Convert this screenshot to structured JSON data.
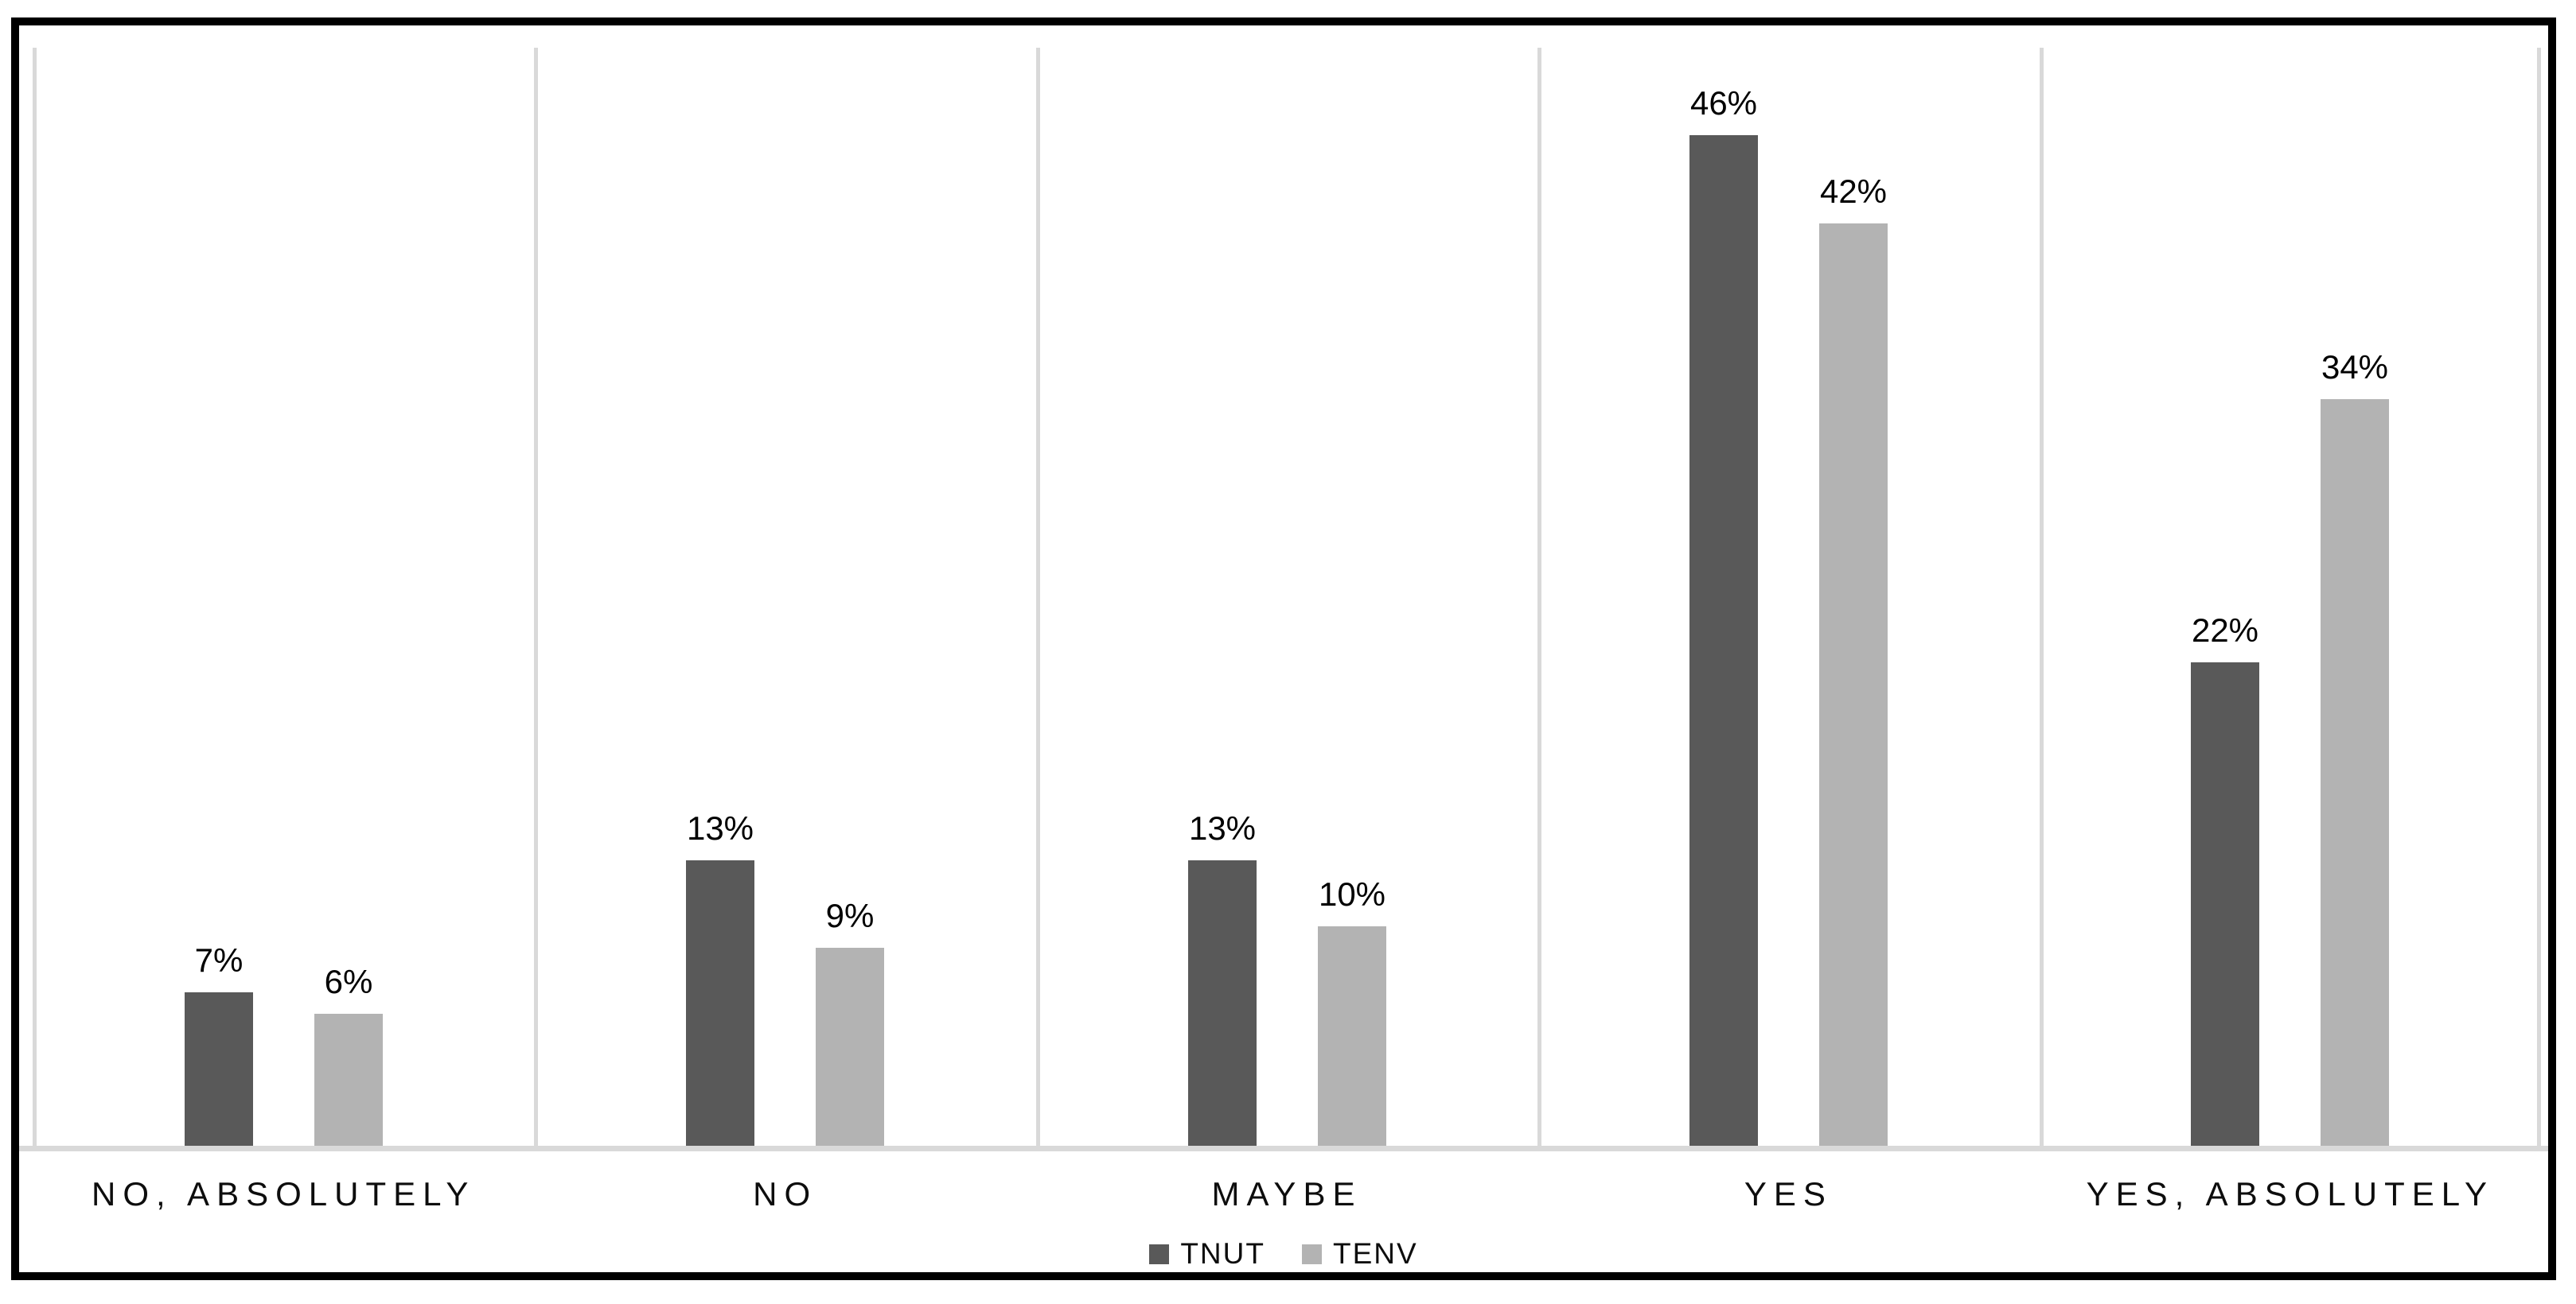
{
  "chart_data": {
    "type": "bar",
    "title": "",
    "xlabel": "",
    "ylabel": "",
    "categories": [
      "NO, ABSOLUTELY",
      "NO",
      "MAYBE",
      "YES",
      "YES, ABSOLUTELY"
    ],
    "series": [
      {
        "name": "TNUT",
        "color": "#595959",
        "values": [
          7,
          13,
          13,
          46,
          22
        ],
        "labels": [
          "7%",
          "13%",
          "13%",
          "46%",
          "22%"
        ]
      },
      {
        "name": "TENV",
        "color": "#b3b3b3",
        "values": [
          6,
          9,
          10,
          42,
          34
        ],
        "labels": [
          "6%",
          "9%",
          "10%",
          "42%",
          "34%"
        ]
      }
    ],
    "ylim": [
      0,
      50
    ],
    "grid": "vertical-category-separators",
    "legend_position": "bottom-center",
    "data_labels": "above-bars"
  },
  "colors": {
    "frame_border": "#000000",
    "background": "#ffffff",
    "gridline": "#d9d9d9",
    "axis_line": "#d9d9d9",
    "label_text": "#000000"
  }
}
